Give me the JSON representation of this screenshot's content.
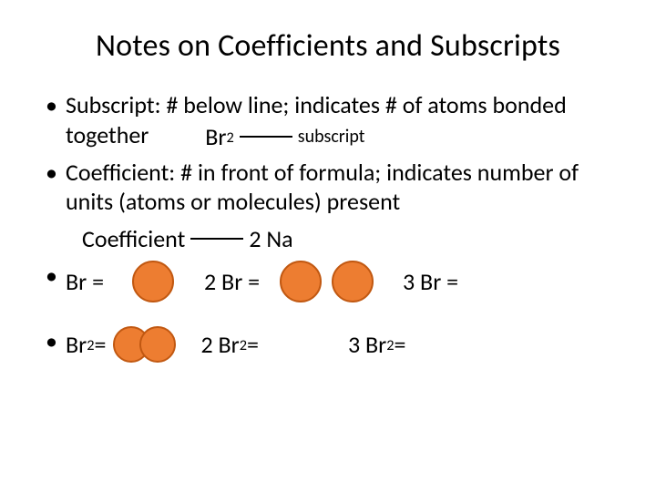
{
  "title": "Notes on Coefficients and Subscripts",
  "bullets": {
    "subscript_def_lead": "Subscript:   # below line; indicates # of atoms bonded together",
    "subscript_example_formula_base": "Br",
    "subscript_example_formula_sub": "2",
    "subscript_label": "subscript",
    "coefficient_def": "Coefficient:  # in front of formula; indicates number of units (atoms or molecules) present",
    "coefficient_label": "Coefficient",
    "coefficient_example": "2  Na"
  },
  "row_single": {
    "a_label": "Br =",
    "b_label": "2 Br =",
    "c_label": "3 Br ="
  },
  "row_molecule": {
    "a_base": "Br",
    "a_sub": "2",
    "a_eq": " =",
    "b_lead": "2 Br",
    "b_sub": "2",
    "b_eq": " =",
    "c_lead": "3 Br",
    "c_sub": "2",
    "c_eq": " ="
  },
  "style": {
    "atom_fill": "#ed7d31",
    "atom_stroke": "#c15811",
    "atom_stroke_width": 2,
    "connector_color": "#000000",
    "connector_width_subscript": 58,
    "connector_width_coefficient": 58,
    "row_single_atom_size": 42,
    "row_molecule_atom_size": 36,
    "row_molecule_overlap": 11
  }
}
